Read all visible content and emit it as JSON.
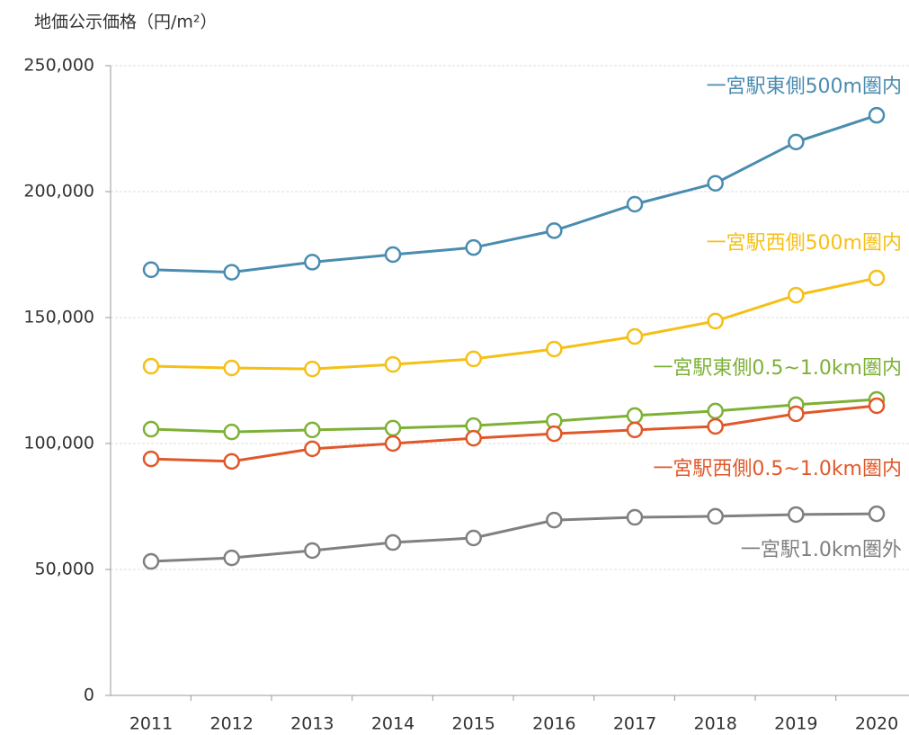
{
  "chart_data": {
    "type": "line",
    "y_label": "地価公示価格（円/m²）",
    "categories": [
      "2011",
      "2012",
      "2013",
      "2014",
      "2015",
      "2016",
      "2017",
      "2018",
      "2019",
      "2020"
    ],
    "series": [
      {
        "name": "一宮駅東側500m圏内",
        "color": "#4a8cb0",
        "values": [
          169000,
          168000,
          172000,
          175000,
          177800,
          184500,
          195000,
          203300,
          219700,
          230300
        ]
      },
      {
        "name": "一宮駅西側500m圏内",
        "color": "#f5c016",
        "values": [
          130700,
          130000,
          129600,
          131400,
          133600,
          137500,
          142500,
          148600,
          158900,
          165700
        ]
      },
      {
        "name": "一宮駅東側0.5~1.0km圏内",
        "color": "#7db136",
        "values": [
          105700,
          104600,
          105400,
          106100,
          107100,
          108900,
          111100,
          112900,
          115400,
          117500
        ]
      },
      {
        "name": "一宮駅西側0.5~1.0km圏内",
        "color": "#e0582a",
        "values": [
          93900,
          92900,
          97900,
          100000,
          102100,
          103900,
          105400,
          106800,
          111800,
          115000
        ]
      },
      {
        "name": "一宮駅1.0km圏外",
        "color": "#808080",
        "values": [
          53200,
          54600,
          57500,
          60700,
          62500,
          69600,
          70700,
          71100,
          71800,
          72100
        ]
      }
    ],
    "ylim": [
      0,
      250000
    ],
    "yticks": [
      0,
      {
        "value": 50000,
        "label": "50,000"
      },
      {
        "value": 100000,
        "label": "100,000"
      },
      {
        "value": 150000,
        "label": "150,000"
      },
      {
        "value": 200000,
        "label": "200,000"
      },
      {
        "value": 250000,
        "label": "250,000"
      }
    ],
    "grid": true
  }
}
